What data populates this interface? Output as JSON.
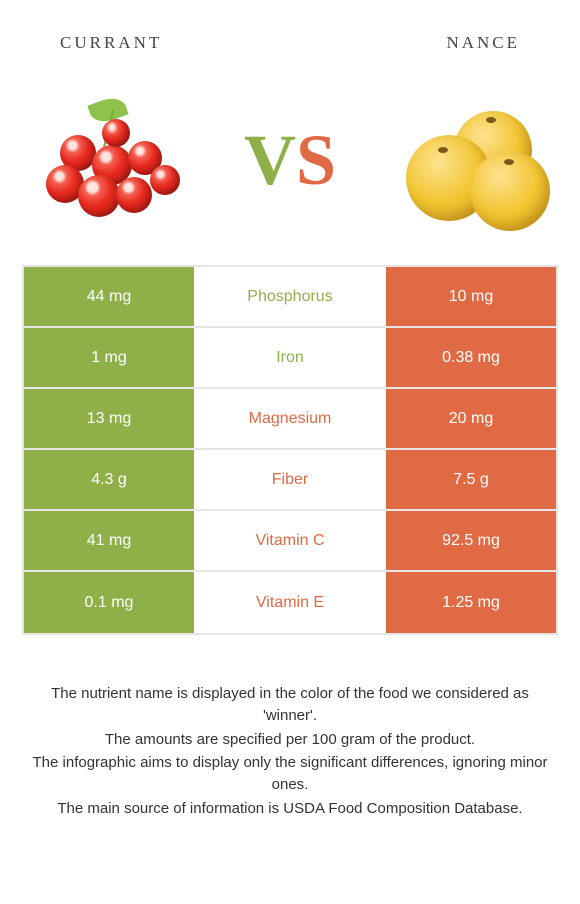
{
  "header": {
    "left": "currant",
    "right": "nance"
  },
  "vs": {
    "v": "V",
    "s": "S"
  },
  "colors": {
    "left_bg": "#8fb048",
    "right_bg": "#e06a44",
    "border": "#e5e5e5"
  },
  "rows": [
    {
      "left": "44 mg",
      "label": "Phosphorus",
      "right": "10 mg",
      "winner": "left"
    },
    {
      "left": "1 mg",
      "label": "Iron",
      "right": "0.38 mg",
      "winner": "left"
    },
    {
      "left": "13 mg",
      "label": "Magnesium",
      "right": "20 mg",
      "winner": "right"
    },
    {
      "left": "4.3 g",
      "label": "Fiber",
      "right": "7.5 g",
      "winner": "right"
    },
    {
      "left": "41 mg",
      "label": "Vitamin C",
      "right": "92.5 mg",
      "winner": "right"
    },
    {
      "left": "0.1 mg",
      "label": "Vitamin E",
      "right": "1.25 mg",
      "winner": "right"
    }
  ],
  "footnotes": [
    "The nutrient name is displayed in the color of the food we considered as 'winner'.",
    "The amounts are specified per 100 gram of the product.",
    "The infographic aims to display only the significant differences, ignoring minor ones.",
    "The main source of information is USDA Food Composition Database."
  ]
}
